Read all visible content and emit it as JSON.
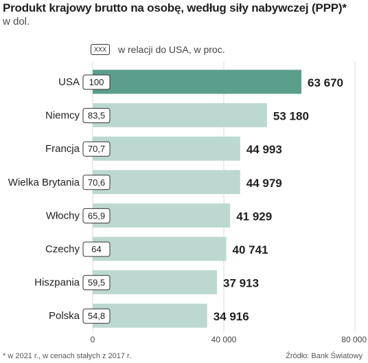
{
  "header": {
    "title": "Produkt krajowy brutto na osobę, według siły nabywczej (PPP)*",
    "subtitle": "w dol."
  },
  "legend": {
    "box_label": "XXX",
    "text": "w relacji do USA, w proc."
  },
  "footer": {
    "footnote": "* w 2021 r., w cenach stałych z 2017 r.",
    "source": "Źródło: Bank Światowy"
  },
  "colors": {
    "highlight": "#5a9e8c",
    "bar": "#bcd9d1",
    "grid": "#d9d9d9"
  },
  "chart_data": {
    "type": "bar",
    "orientation": "horizontal",
    "categories": [
      "USA",
      "Niemcy",
      "Francja",
      "Wielka Brytania",
      "Włochy",
      "Czechy",
      "Hiszpania",
      "Polska"
    ],
    "values": [
      63670,
      53180,
      44993,
      44979,
      41929,
      40741,
      37913,
      34916
    ],
    "value_labels": [
      "63 670",
      "53 180",
      "44 993",
      "44 979",
      "41 929",
      "40 741",
      "37 913",
      "34 916"
    ],
    "relative_to_usa": [
      "100",
      "83,5",
      "70,7",
      "70,6",
      "65,9",
      "64",
      "59,5",
      "54,8"
    ],
    "highlighted_category": "USA",
    "xlim": [
      0,
      80000
    ],
    "xticks": [
      0,
      40000,
      80000
    ],
    "xtick_labels": [
      "0",
      "40 000",
      "80 000"
    ],
    "grid": true
  }
}
